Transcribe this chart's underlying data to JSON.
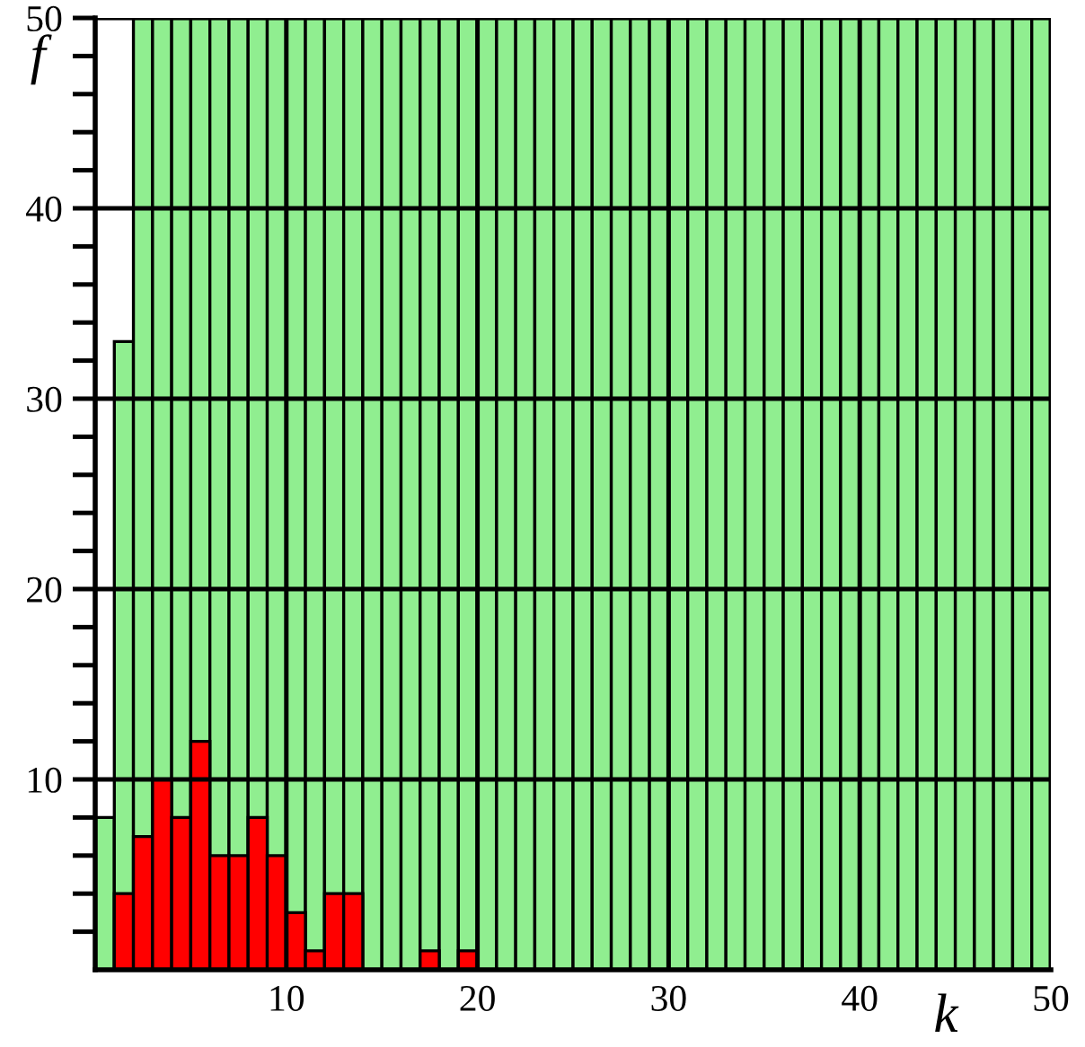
{
  "chart_data": {
    "type": "histogram",
    "xlabel": "k",
    "ylabel": "f",
    "bins": [
      0,
      1,
      2,
      3,
      4,
      5,
      6,
      7,
      8,
      9,
      10,
      11,
      12,
      13,
      14,
      15,
      16,
      17,
      18,
      19,
      20,
      21,
      22,
      23,
      24,
      25,
      26,
      27,
      28,
      29,
      30,
      31,
      32,
      33,
      34,
      35,
      36,
      37,
      38,
      39,
      40,
      41,
      42,
      43,
      44,
      45,
      46,
      47,
      48,
      49,
      50
    ],
    "series": [
      {
        "color": "#90ee90",
        "values": [
          8,
          33,
          50,
          50,
          50,
          50,
          50,
          50,
          50,
          50,
          50,
          50,
          50,
          50,
          50,
          50,
          50,
          50,
          50,
          50,
          50,
          50,
          50,
          50,
          50,
          50,
          50,
          50,
          50,
          50,
          50,
          50,
          50,
          50,
          50,
          50,
          50,
          50,
          50,
          50,
          50,
          50,
          50,
          50,
          50,
          50,
          50,
          50,
          50,
          50
        ]
      },
      {
        "color": "#ff0000",
        "values": [
          null,
          4,
          7,
          10,
          8,
          12,
          6,
          6,
          8,
          6,
          3,
          1,
          4,
          4,
          null,
          null,
          null,
          1,
          null,
          1,
          null,
          null,
          null,
          null,
          null,
          null,
          null,
          null,
          null,
          null,
          null,
          null,
          null,
          null,
          null,
          null,
          null,
          null,
          null,
          null,
          null,
          null,
          null,
          null,
          null,
          null,
          null,
          null,
          null,
          null
        ]
      }
    ],
    "xlim": [
      0,
      50
    ],
    "ylim": [
      0,
      50
    ],
    "xticks": [
      10,
      20,
      30,
      40,
      50
    ],
    "yticks": [
      {
        "value": 2,
        "label": null
      },
      {
        "value": 4,
        "label": null
      },
      {
        "value": 6,
        "label": null
      },
      {
        "value": 8,
        "label": null
      },
      10,
      {
        "value": 12,
        "label": null
      },
      {
        "value": 14,
        "label": null
      },
      {
        "value": 16,
        "label": null
      },
      {
        "value": 18,
        "label": null
      },
      20,
      {
        "value": 22,
        "label": null
      },
      {
        "value": 24,
        "label": null
      },
      {
        "value": 26,
        "label": null
      },
      {
        "value": 28,
        "label": null
      },
      30,
      {
        "value": 32,
        "label": null
      },
      {
        "value": 34,
        "label": null
      },
      {
        "value": 36,
        "label": null
      },
      {
        "value": 38,
        "label": null
      },
      40,
      {
        "value": 42,
        "label": null
      },
      {
        "value": 44,
        "label": null
      },
      {
        "value": 46,
        "label": null
      },
      {
        "value": 48,
        "label": null
      },
      50
    ],
    "grid": true,
    "legend": false
  }
}
